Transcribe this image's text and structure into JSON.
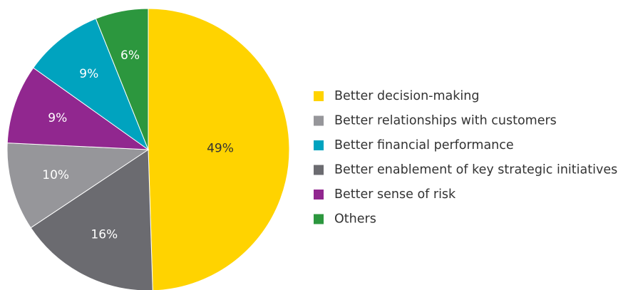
{
  "chart_data": {
    "type": "pie",
    "start": "12 o'clock",
    "direction": "clockwise",
    "legend_position": "right",
    "slices": [
      {
        "name": "Better decision-making",
        "value": 49,
        "label": "49%",
        "color": "#FFD300",
        "label_color": "#333333"
      },
      {
        "name": "Better enablement of key strategic initiatives",
        "value": 16,
        "label": "16%",
        "color": "#6B6B70",
        "label_color": "#FFFFFF"
      },
      {
        "name": "Better relationships with customers",
        "value": 10,
        "label": "10%",
        "color": "#96969A",
        "label_color": "#FFFFFF"
      },
      {
        "name": "Better sense of risk",
        "value": 9,
        "label": "9%",
        "color": "#91278F",
        "label_color": "#FFFFFF"
      },
      {
        "name": "Better financial performance",
        "value": 9,
        "label": "9%",
        "color": "#00A3BF",
        "label_color": "#FFFFFF"
      },
      {
        "name": "Others",
        "value": 6,
        "label": "6%",
        "color": "#2C973E",
        "label_color": "#FFFFFF"
      }
    ],
    "legend": [
      {
        "text": "Better decision-making",
        "color": "#FFD300"
      },
      {
        "text": "Better relationships with customers",
        "color": "#96969A"
      },
      {
        "text": "Better financial performance",
        "color": "#00A3BF"
      },
      {
        "text": "Better enablement of key strategic initiatives",
        "color": "#6B6B70"
      },
      {
        "text": "Better sense of risk",
        "color": "#91278F"
      },
      {
        "text": "Others",
        "color": "#2C973E"
      }
    ]
  }
}
